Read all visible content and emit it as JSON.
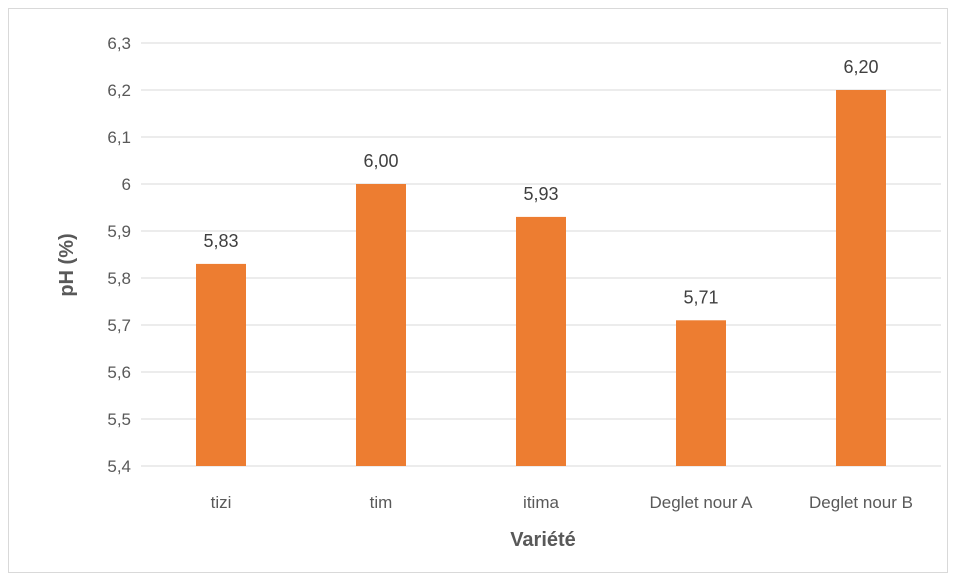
{
  "chart_data": {
    "type": "bar",
    "title": "",
    "xlabel": "Variété",
    "ylabel": "pH (%)",
    "categories": [
      "tizi",
      "tim",
      "itima",
      "Deglet nour A",
      "Deglet nour B"
    ],
    "values": [
      5.83,
      6.0,
      5.93,
      5.71,
      6.2
    ],
    "data_labels": [
      "5,83",
      "6,00",
      "5,93",
      "5,71",
      "6,20"
    ],
    "ylim": [
      5.4,
      6.3
    ],
    "yticks": [
      5.4,
      5.5,
      5.6,
      5.7,
      5.8,
      5.9,
      6.0,
      6.1,
      6.2,
      6.3
    ],
    "ytick_labels": [
      "5,4",
      "5,5",
      "5,6",
      "5,7",
      "5,8",
      "5,9",
      "6",
      "6,1",
      "6,2",
      "6,3"
    ],
    "grid": true,
    "legend": "none",
    "bar_color": "#ED7D31",
    "grid_color": "#d9d9d9"
  }
}
